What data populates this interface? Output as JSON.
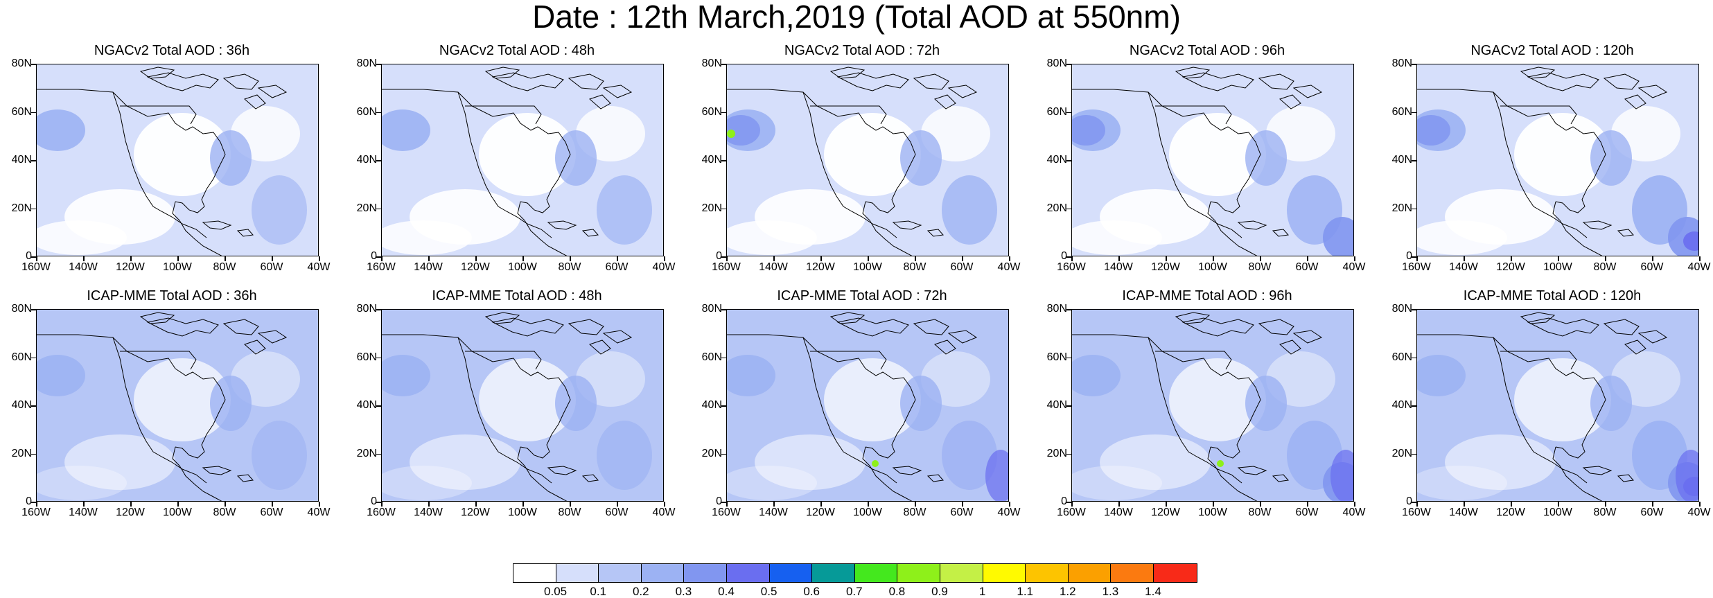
{
  "figure": {
    "title": "Date : 12th March,2019 (Total AOD at 550nm)"
  },
  "axes": {
    "y_ticks": [
      "80N",
      "60N",
      "40N",
      "20N",
      "0"
    ],
    "x_ticks": [
      "160W",
      "140W",
      "120W",
      "100W",
      "80W",
      "60W",
      "40W"
    ]
  },
  "panels": [
    {
      "title": "NGACv2 Total AOD : 36h"
    },
    {
      "title": "NGACv2 Total AOD : 48h"
    },
    {
      "title": "NGACv2 Total AOD : 72h"
    },
    {
      "title": "NGACv2 Total AOD : 96h"
    },
    {
      "title": "NGACv2 Total AOD : 120h"
    },
    {
      "title": "ICAP-MME Total AOD : 36h"
    },
    {
      "title": "ICAP-MME Total AOD : 48h"
    },
    {
      "title": "ICAP-MME Total AOD : 72h"
    },
    {
      "title": "ICAP-MME Total AOD : 96h"
    },
    {
      "title": "ICAP-MME Total AOD : 120h"
    }
  ],
  "colorbar": {
    "labels": [
      "0.05",
      "0.1",
      "0.2",
      "0.3",
      "0.4",
      "0.5",
      "0.6",
      "0.7",
      "0.8",
      "0.9",
      "1",
      "1.1",
      "1.2",
      "1.3",
      "1.4"
    ],
    "colors": [
      "#ffffff",
      "#d6dffb",
      "#b6c6f6",
      "#9cb2f3",
      "#8196f0",
      "#6a6ef0",
      "#1660f0",
      "#069a98",
      "#44e81e",
      "#8ef01a",
      "#c4f046",
      "#fffa00",
      "#fdc400",
      "#fba000",
      "#fb7a10",
      "#f82a18"
    ]
  }
}
